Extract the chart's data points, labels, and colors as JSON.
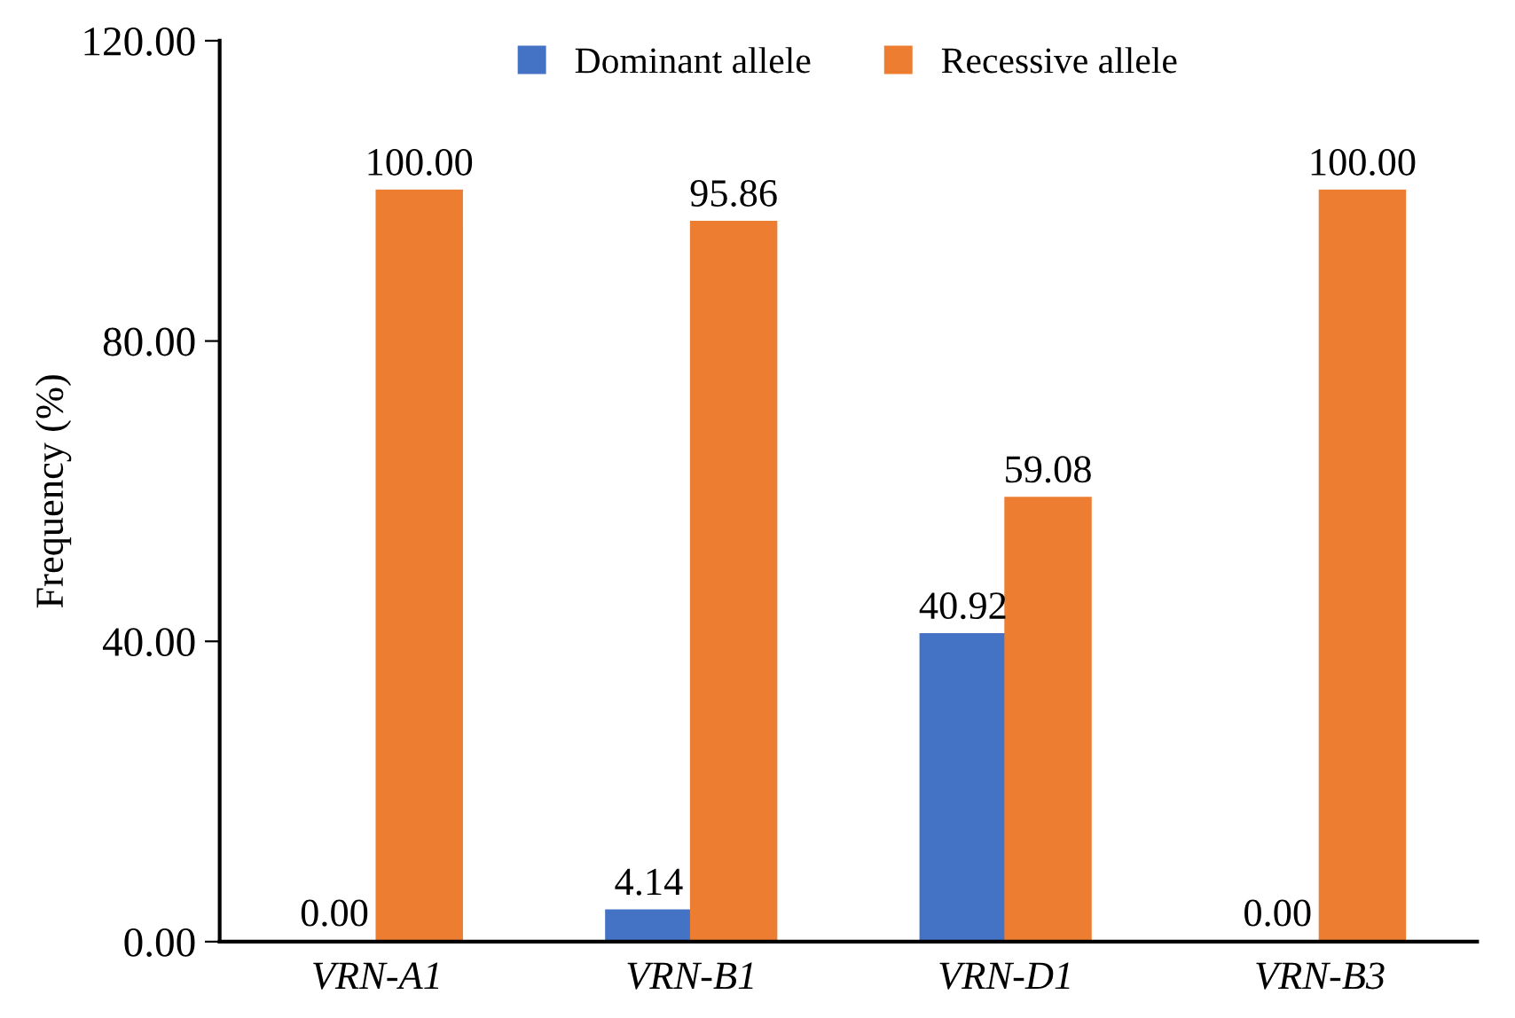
{
  "chart_data": {
    "type": "bar",
    "ylabel": "Frequency (%)",
    "categories": [
      "VRN-A1",
      "VRN-B1",
      "VRN-D1",
      "VRN-B3"
    ],
    "series": [
      {
        "name": "Dominant allele",
        "color": "#4472c4",
        "values": [
          0,
          4.14,
          40.92,
          0
        ],
        "value_labels": [
          "0.00",
          "4.14",
          "40.92",
          "0.00"
        ]
      },
      {
        "name": "Recessive allele",
        "color": "#ed7d31",
        "values": [
          100,
          95.86,
          59.08,
          100
        ],
        "value_labels": [
          "100.00",
          "95.86",
          "59.08",
          "100.00"
        ]
      }
    ],
    "ylim": [
      0,
      120
    ],
    "yticks": [
      {
        "value": 0,
        "label": "0.00"
      },
      {
        "value": 40,
        "label": "40.00"
      },
      {
        "value": 80,
        "label": "80.00"
      },
      {
        "value": 120,
        "label": "120.00"
      }
    ],
    "grid": false,
    "legend": "top"
  }
}
